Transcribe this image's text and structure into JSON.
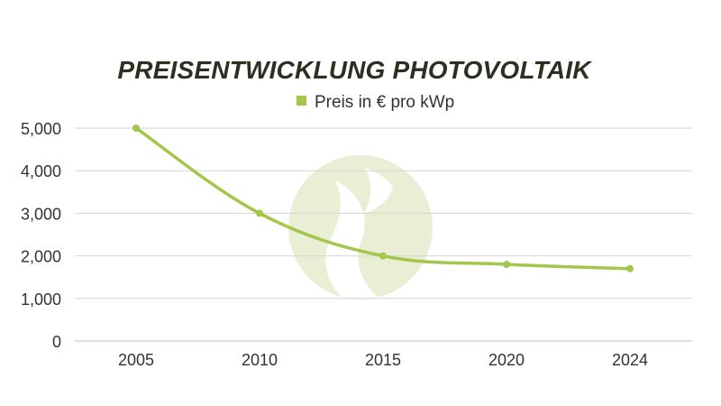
{
  "chart_data": {
    "type": "line",
    "title": "PREISENTWICKLUNG PHOTOVOLTAIK",
    "categories": [
      "2005",
      "2010",
      "2015",
      "2020",
      "2024"
    ],
    "series": [
      {
        "name": "Preis in € pro kWp",
        "values": [
          5000,
          3000,
          2000,
          1800,
          1700
        ]
      }
    ],
    "y_ticks": [
      "0",
      "1,000",
      "2,000",
      "3,000",
      "4,000",
      "5,000"
    ],
    "ylim": [
      0,
      5000
    ],
    "grid": true,
    "legend_position": "top",
    "colors": {
      "series": "#a4c64a",
      "title": "#2b3121",
      "grid": "#d6d6d6",
      "axis": "#bdbdbd",
      "text": "#333333",
      "watermark": "#e8efd4"
    },
    "watermark_icon": "flame-logo-icon"
  }
}
